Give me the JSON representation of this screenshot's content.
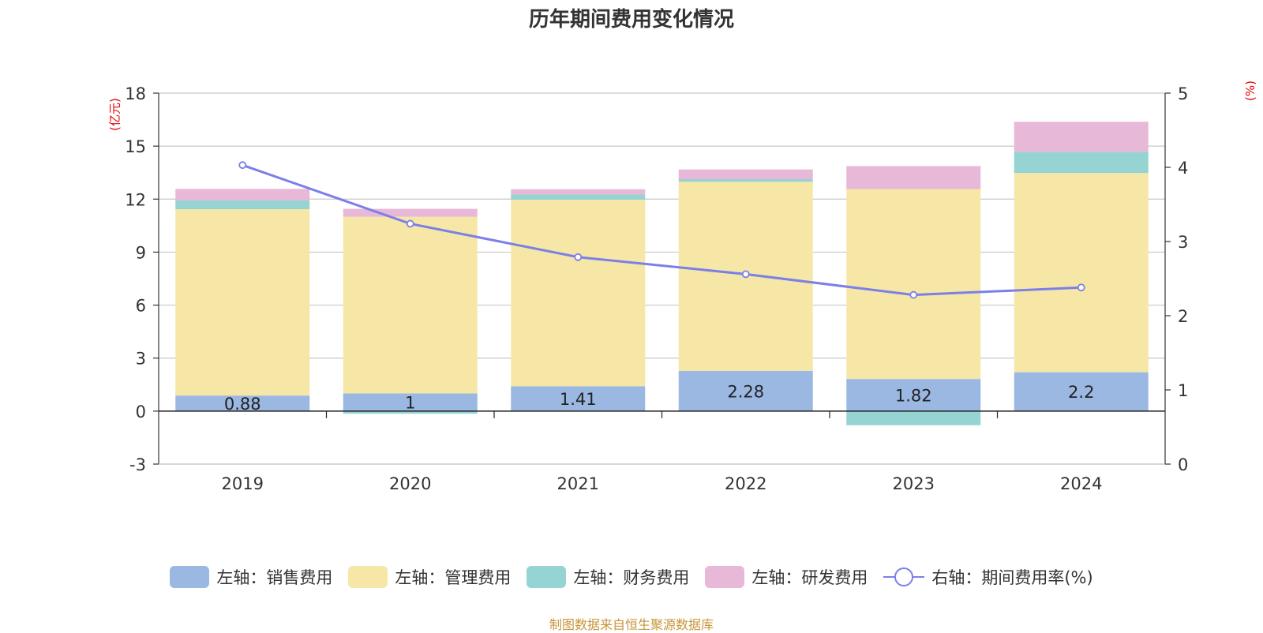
{
  "chart_data": {
    "type": "bar",
    "title": "历年期间费用变化情况",
    "categories": [
      "2019",
      "2020",
      "2021",
      "2022",
      "2023",
      "2024"
    ],
    "left_axis": {
      "unit_label": "(亿元)",
      "ylim": [
        -3,
        18
      ],
      "ticks": [
        -3,
        0,
        3,
        6,
        9,
        12,
        15,
        18
      ]
    },
    "right_axis": {
      "unit_label": "(%)",
      "ylim": [
        0,
        5
      ],
      "ticks": [
        0,
        1,
        2,
        3,
        4,
        5
      ]
    },
    "series": [
      {
        "name": "左轴：销售费用",
        "axis": "left",
        "kind": "bar",
        "color": "#9bb8e3",
        "values": [
          0.88,
          1,
          1.41,
          2.28,
          1.82,
          2.2
        ],
        "data_labels": [
          "0.88",
          "1",
          "1.41",
          "2.28",
          "1.82",
          "2.2"
        ]
      },
      {
        "name": "左轴：管理费用",
        "axis": "left",
        "kind": "bar",
        "color": "#f7e7a6",
        "values": [
          10.55,
          10.0,
          10.55,
          10.7,
          10.75,
          11.28
        ]
      },
      {
        "name": "左轴：财务费用",
        "axis": "left",
        "kind": "bar",
        "color": "#96d3d3",
        "values": [
          0.5,
          -0.15,
          0.3,
          0.15,
          -0.8,
          1.2
        ]
      },
      {
        "name": "左轴：研发费用",
        "axis": "left",
        "kind": "bar",
        "color": "#e8b8d8",
        "values": [
          0.65,
          0.45,
          0.3,
          0.55,
          1.3,
          1.7
        ]
      },
      {
        "name": "右轴：期间费用率(%)",
        "axis": "right",
        "kind": "line",
        "color": "#7b7fe8",
        "values": [
          4.03,
          3.24,
          2.79,
          2.56,
          2.28,
          2.38
        ]
      }
    ],
    "grid": true,
    "legend_position": "bottom"
  },
  "source_note": "制图数据来自恒生聚源数据库"
}
